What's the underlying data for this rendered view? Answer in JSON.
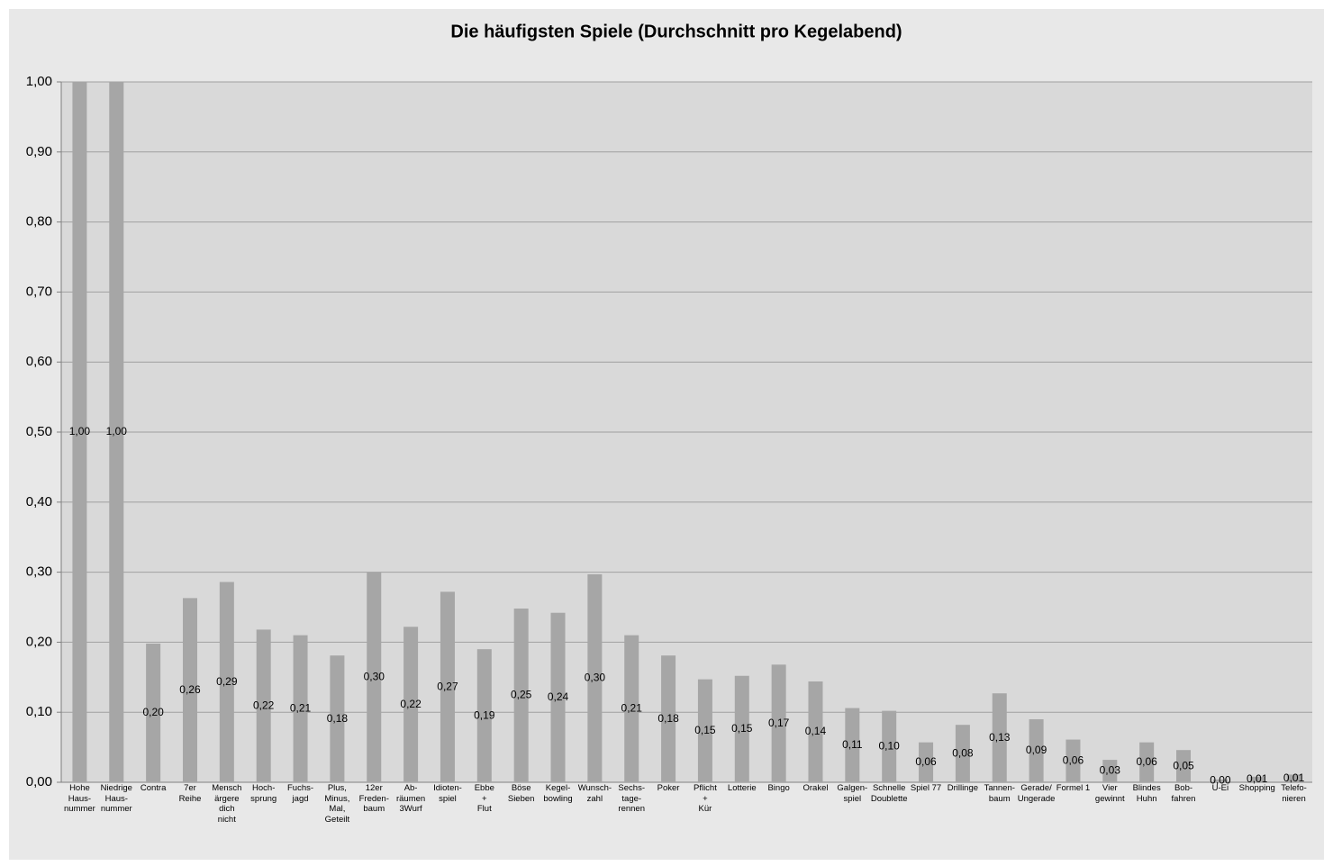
{
  "chart_data": {
    "type": "bar",
    "title": "Die häufigsten  Spiele  (Durchschnitt  pro  Kegelabend)",
    "categories": [
      "Hohe\nHaus-\nnummer",
      "Niedrige\nHaus-\nnummer",
      "Contra",
      "7er\nReihe",
      "Mensch\närgere\ndich\nnicht",
      "Hoch-\nsprung",
      "Fuchs-\njagd",
      "Plus,\nMinus,\nMal,\nGeteilt",
      "12er\nFreden-\nbaum",
      "Ab-\nräumen\n3Wurf",
      "Idioten-\nspiel",
      "Ebbe\n+\nFlut",
      "Böse\nSieben",
      "Kegel-\nbowling",
      "Wunsch-\nzahl",
      "Sechs-\ntage-\nrennen",
      "Poker",
      "Pflicht\n+\nKür",
      "Lotterie",
      "Bingo",
      "Orakel",
      "Galgen-\nspiel",
      "Schnelle\nDoublette",
      "Spiel 77",
      "Drillinge",
      "Tannen-\nbaum",
      "Gerade/\nUngerade",
      "Formel 1",
      "Vier\ngewinnt",
      "Blindes\nHuhn",
      "Bob-\nfahren",
      "U-Ei",
      "Shopping",
      "Telefo-\nnieren"
    ],
    "values": [
      1.0,
      1.0,
      0.198,
      0.263,
      0.286,
      0.218,
      0.21,
      0.181,
      0.3,
      0.222,
      0.272,
      0.19,
      0.248,
      0.242,
      0.297,
      0.21,
      0.181,
      0.147,
      0.152,
      0.168,
      0.144,
      0.106,
      0.102,
      0.057,
      0.082,
      0.127,
      0.09,
      0.061,
      0.032,
      0.057,
      0.046,
      0.004,
      0.008,
      0.011
    ],
    "value_labels": [
      "1,00",
      "1,00",
      "0,20",
      "0,26",
      "0,29",
      "0,22",
      "0,21",
      "0,18",
      "0,30",
      "0,22",
      "0,27",
      "0,19",
      "0,25",
      "0,24",
      "0,30",
      "0,21",
      "0,18",
      "0,15",
      "0,15",
      "0,17",
      "0,14",
      "0,11",
      "0,10",
      "0,06",
      "0,08",
      "0,13",
      "0,09",
      "0,06",
      "0,03",
      "0,06",
      "0,05",
      "0,00",
      "0,01",
      "0,01"
    ],
    "color": "#a6a6a6",
    "ylim": [
      0,
      1
    ],
    "yticks": [
      {
        "value": 0,
        "label": "0,00"
      },
      {
        "value": 0.1,
        "label": "0,10"
      },
      {
        "value": 0.2,
        "label": "0,20"
      },
      {
        "value": 0.3,
        "label": "0,30"
      },
      {
        "value": 0.4,
        "label": "0,40"
      },
      {
        "value": 0.5,
        "label": "0,50"
      },
      {
        "value": 0.6,
        "label": "0,60"
      },
      {
        "value": 0.7,
        "label": "0,70"
      },
      {
        "value": 0.8,
        "label": "0,80"
      },
      {
        "value": 0.9,
        "label": "0,90"
      },
      {
        "value": 1,
        "label": "1,00"
      }
    ],
    "grid": true
  }
}
